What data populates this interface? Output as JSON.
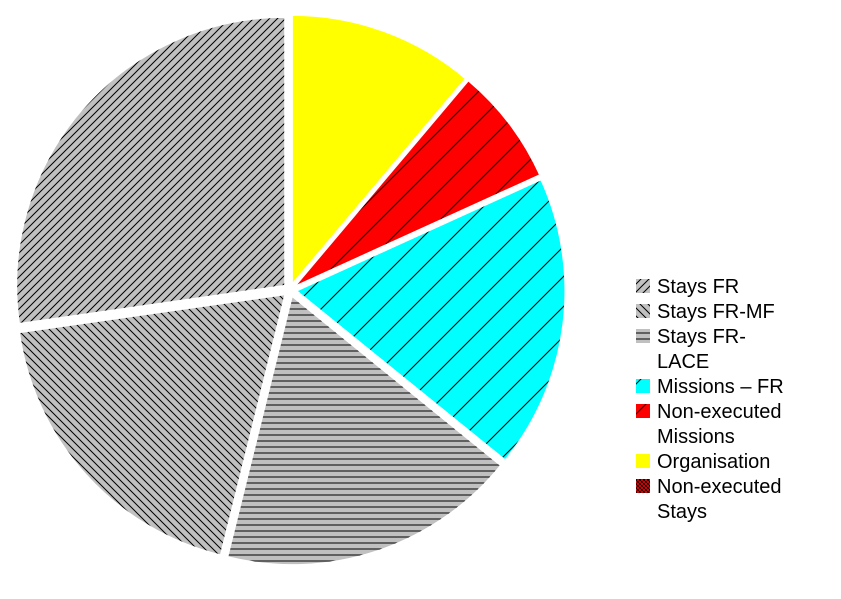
{
  "chart_data": {
    "type": "pie",
    "title": "",
    "legend_position": "right",
    "slices": [
      {
        "label_lines": [
          "Stays FR"
        ],
        "value": 28.6,
        "color": "#c0c0c0",
        "pattern": "diag-up"
      },
      {
        "label_lines": [
          "Stays FR-MF"
        ],
        "value": 19.8,
        "color": "#c0c0c0",
        "pattern": "diag-down"
      },
      {
        "label_lines": [
          "Stays FR-",
          "LACE"
        ],
        "value": 18.9,
        "color": "#c0c0c0",
        "pattern": "horizontal"
      },
      {
        "label_lines": [
          "Missions – FR"
        ],
        "value": 18.5,
        "color": "#00ffff",
        "pattern": "diag-wide"
      },
      {
        "label_lines": [
          "Non-executed",
          "Missions"
        ],
        "value": 7.4,
        "color": "#ff0000",
        "pattern": "diag-wide"
      },
      {
        "label_lines": [
          "Organisation"
        ],
        "value": 11.7,
        "color": "#ffff00",
        "pattern": "none"
      },
      {
        "label_lines": [
          "Non-executed",
          "Stays"
        ],
        "value": 0.0,
        "color": "#ff0000",
        "pattern": "crosshatch"
      }
    ]
  }
}
